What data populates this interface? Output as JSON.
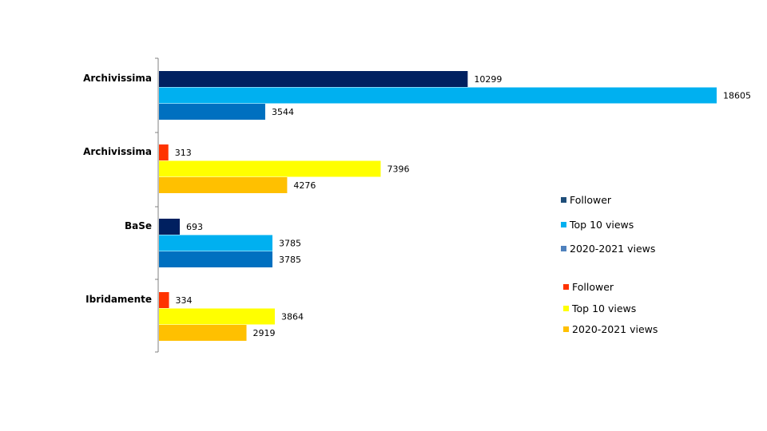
{
  "chart_data": {
    "type": "bar",
    "orientation": "horizontal",
    "xlim": [
      0,
      18605
    ],
    "grid": false,
    "groups": [
      {
        "category": "Archivissima",
        "bars": [
          {
            "series": "Follower",
            "value": 10299,
            "color": "#002060"
          },
          {
            "series": "Top 10  views",
            "value": 18605,
            "color": "#00B0F0"
          },
          {
            "series": "2020-2021  views",
            "value": 3544,
            "color": "#0070C0"
          }
        ]
      },
      {
        "category": "Archivissima",
        "bars": [
          {
            "series": "Follower",
            "value": 313,
            "color": "#FF3300"
          },
          {
            "series": "Top 10  views",
            "value": 7396,
            "color": "#FFFF00"
          },
          {
            "series": "2020-2021 views",
            "value": 4276,
            "color": "#FFC000"
          }
        ]
      },
      {
        "category": "BaSe",
        "bars": [
          {
            "series": "Follower",
            "value": 693,
            "color": "#002060"
          },
          {
            "series": "Top 10  views",
            "value": 3785,
            "color": "#00B0F0"
          },
          {
            "series": "2020-2021  views",
            "value": 3785,
            "color": "#0070C0"
          }
        ]
      },
      {
        "category": "Ibridamente",
        "bars": [
          {
            "series": "Follower",
            "value": 334,
            "color": "#FF3300"
          },
          {
            "series": "Top 10  views",
            "value": 3864,
            "color": "#FFFF00"
          },
          {
            "series": "2020-2021 views",
            "value": 2919,
            "color": "#FFC000"
          }
        ]
      }
    ],
    "legends": [
      {
        "placement": "right-middle",
        "items": [
          {
            "label": "Follower",
            "color": "#1F4E79"
          },
          {
            "label": "Top 10  views",
            "color": "#00B0F0"
          },
          {
            "label": "2020-2021  views",
            "color": "#4F81BD"
          }
        ]
      },
      {
        "placement": "bottom-right",
        "items": [
          {
            "label": "Follower",
            "color": "#FF3300"
          },
          {
            "label": "Top 10  views",
            "color": "#FFFF00"
          },
          {
            "label": "2020-2021 views",
            "color": "#FFC000"
          }
        ]
      }
    ]
  }
}
